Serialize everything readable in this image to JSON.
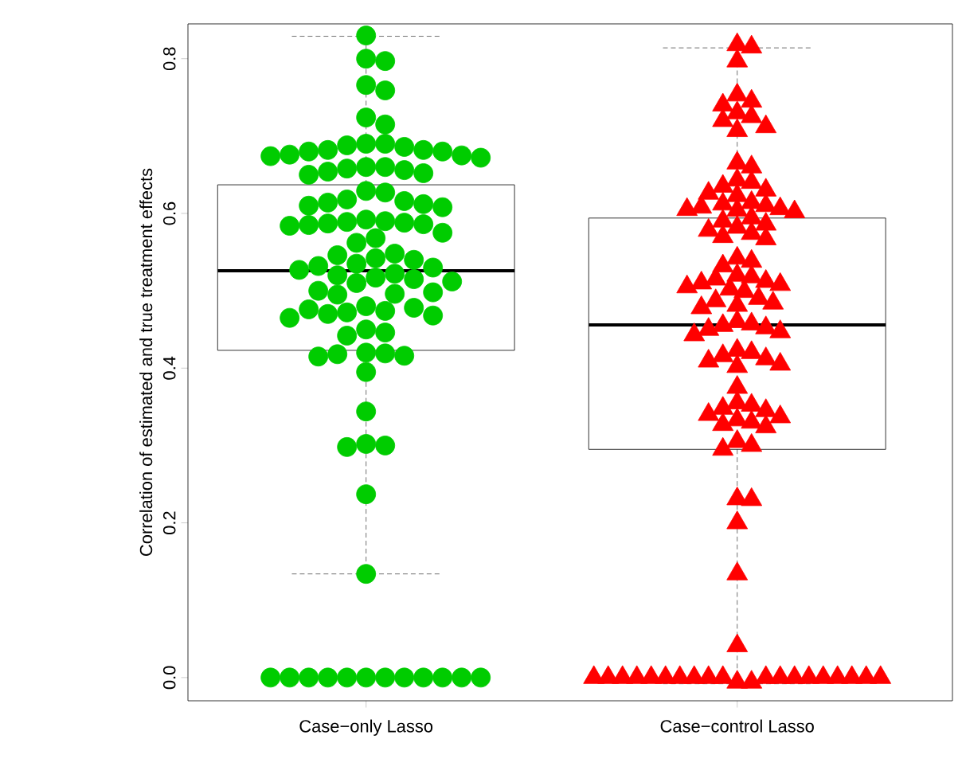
{
  "chart_data": {
    "type": "box",
    "ylabel": "Correlation of estimated and true treatment effects",
    "categories": [
      "Case−only Lasso",
      "Case−control Lasso"
    ],
    "boxes": [
      {
        "low": 0.134,
        "q1": 0.423,
        "median": 0.526,
        "q3": 0.637,
        "high": 0.829
      },
      {
        "low": -0.008,
        "q1": 0.295,
        "median": 0.456,
        "q3": 0.594,
        "high": 0.814
      }
    ],
    "ylim": [
      -0.03,
      0.845
    ],
    "yticks": [
      {
        "value": 0,
        "label": "0.0"
      },
      {
        "value": 0.2,
        "label": "0.2"
      },
      {
        "value": 0.4,
        "label": "0.4"
      },
      {
        "value": 0.6,
        "label": "0.6"
      },
      {
        "value": 0.8,
        "label": "0.8"
      }
    ],
    "series": [
      {
        "type": "scatter",
        "color": "#00cc00",
        "marker": "circle",
        "x": [
          "Case−only Lasso",
          "Case−only Lasso",
          "Case−only Lasso",
          "Case−only Lasso",
          "Case−only Lasso",
          "Case−only Lasso",
          "Case−only Lasso",
          "Case−only Lasso",
          "Case−only Lasso",
          "Case−only Lasso",
          "Case−only Lasso",
          "Case−only Lasso",
          "Case−only Lasso",
          "Case−only Lasso",
          "Case−only Lasso",
          "Case−only Lasso",
          "Case−only Lasso",
          "Case−only Lasso",
          "Case−only Lasso",
          "Case−only Lasso",
          "Case−only Lasso",
          "Case−only Lasso",
          "Case−only Lasso",
          "Case−only Lasso",
          "Case−only Lasso",
          "Case−only Lasso",
          "Case−only Lasso",
          "Case−only Lasso",
          "Case−only Lasso",
          "Case−only Lasso",
          "Case−only Lasso",
          "Case−only Lasso",
          "Case−only Lasso",
          "Case−only Lasso",
          "Case−only Lasso",
          "Case−only Lasso",
          "Case−only Lasso",
          "Case−only Lasso",
          "Case−only Lasso",
          "Case−only Lasso",
          "Case−only Lasso",
          "Case−only Lasso",
          "Case−only Lasso",
          "Case−only Lasso",
          "Case−only Lasso",
          "Case−only Lasso",
          "Case−only Lasso",
          "Case−only Lasso",
          "Case−only Lasso",
          "Case−only Lasso",
          "Case−only Lasso",
          "Case−only Lasso",
          "Case−only Lasso",
          "Case−only Lasso",
          "Case−only Lasso",
          "Case−only Lasso",
          "Case−only Lasso",
          "Case−only Lasso",
          "Case−only Lasso",
          "Case−only Lasso",
          "Case−only Lasso",
          "Case−only Lasso",
          "Case−only Lasso",
          "Case−only Lasso",
          "Case−only Lasso",
          "Case−only Lasso",
          "Case−only Lasso",
          "Case−only Lasso",
          "Case−only Lasso",
          "Case−only Lasso",
          "Case−only Lasso",
          "Case−only Lasso",
          "Case−only Lasso",
          "Case−only Lasso",
          "Case−only Lasso",
          "Case−only Lasso",
          "Case−only Lasso",
          "Case−only Lasso",
          "Case−only Lasso",
          "Case−only Lasso",
          "Case−only Lasso",
          "Case−only Lasso",
          "Case−only Lasso",
          "Case−only Lasso",
          "Case−only Lasso",
          "Case−only Lasso",
          "Case−only Lasso",
          "Case−only Lasso",
          "Case−only Lasso",
          "Case−only Lasso",
          "Case−only Lasso",
          "Case−only Lasso",
          "Case−only Lasso",
          "Case−only Lasso",
          "Case−only Lasso",
          "Case−only Lasso",
          "Case−only Lasso",
          "Case−only Lasso"
        ],
        "values": [
          0.83,
          0.8,
          0.797,
          0.766,
          0.759,
          0.724,
          0.715,
          0.69,
          0.69,
          0.688,
          0.686,
          0.682,
          0.682,
          0.68,
          0.68,
          0.676,
          0.675,
          0.674,
          0.672,
          0.66,
          0.66,
          0.658,
          0.656,
          0.654,
          0.652,
          0.65,
          0.629,
          0.627,
          0.618,
          0.616,
          0.614,
          0.612,
          0.61,
          0.608,
          0.592,
          0.59,
          0.589,
          0.588,
          0.587,
          0.586,
          0.585,
          0.584,
          0.575,
          0.568,
          0.562,
          0.548,
          0.546,
          0.542,
          0.54,
          0.535,
          0.532,
          0.53,
          0.527,
          0.522,
          0.52,
          0.517,
          0.515,
          0.512,
          0.51,
          0.5,
          0.498,
          0.496,
          0.495,
          0.48,
          0.478,
          0.476,
          0.474,
          0.472,
          0.47,
          0.468,
          0.465,
          0.45,
          0.446,
          0.442,
          0.42,
          0.419,
          0.418,
          0.416,
          0.415,
          0.395,
          0.344,
          0.302,
          0.3,
          0.298,
          0.237,
          0.134,
          0,
          0,
          0,
          0,
          0,
          0,
          0,
          0,
          0,
          0,
          0,
          0
        ]
      },
      {
        "type": "scatter",
        "color": "#ff0000",
        "marker": "triangle",
        "x": [
          "Case−control Lasso",
          "Case−control Lasso",
          "Case−control Lasso",
          "Case−control Lasso",
          "Case−control Lasso",
          "Case−control Lasso",
          "Case−control Lasso",
          "Case−control Lasso",
          "Case−control Lasso",
          "Case−control Lasso",
          "Case−control Lasso",
          "Case−control Lasso",
          "Case−control Lasso",
          "Case−control Lasso",
          "Case−control Lasso",
          "Case−control Lasso",
          "Case−control Lasso",
          "Case−control Lasso",
          "Case−control Lasso",
          "Case−control Lasso",
          "Case−control Lasso",
          "Case−control Lasso",
          "Case−control Lasso",
          "Case−control Lasso",
          "Case−control Lasso",
          "Case−control Lasso",
          "Case−control Lasso",
          "Case−control Lasso",
          "Case−control Lasso",
          "Case−control Lasso",
          "Case−control Lasso",
          "Case−control Lasso",
          "Case−control Lasso",
          "Case−control Lasso",
          "Case−control Lasso",
          "Case−control Lasso",
          "Case−control Lasso",
          "Case−control Lasso",
          "Case−control Lasso",
          "Case−control Lasso",
          "Case−control Lasso",
          "Case−control Lasso",
          "Case−control Lasso",
          "Case−control Lasso",
          "Case−control Lasso",
          "Case−control Lasso",
          "Case−control Lasso",
          "Case−control Lasso",
          "Case−control Lasso",
          "Case−control Lasso",
          "Case−control Lasso",
          "Case−control Lasso",
          "Case−control Lasso",
          "Case−control Lasso",
          "Case−control Lasso",
          "Case−control Lasso",
          "Case−control Lasso",
          "Case−control Lasso",
          "Case−control Lasso",
          "Case−control Lasso",
          "Case−control Lasso",
          "Case−control Lasso",
          "Case−control Lasso",
          "Case−control Lasso",
          "Case−control Lasso",
          "Case−control Lasso",
          "Case−control Lasso",
          "Case−control Lasso",
          "Case−control Lasso",
          "Case−control Lasso",
          "Case−control Lasso",
          "Case−control Lasso",
          "Case−control Lasso",
          "Case−control Lasso",
          "Case−control Lasso",
          "Case−control Lasso",
          "Case−control Lasso",
          "Case−control Lasso",
          "Case−control Lasso",
          "Case−control Lasso",
          "Case−control Lasso",
          "Case−control Lasso",
          "Case−control Lasso",
          "Case−control Lasso",
          "Case−control Lasso",
          "Case−control Lasso",
          "Case−control Lasso",
          "Case−control Lasso",
          "Case−control Lasso",
          "Case−control Lasso",
          "Case−control Lasso",
          "Case−control Lasso",
          "Case−control Lasso",
          "Case−control Lasso",
          "Case−control Lasso",
          "Case−control Lasso",
          "Case−control Lasso",
          "Case−control Lasso",
          "Case−control Lasso",
          "Case−control Lasso",
          "Case−control Lasso",
          "Case−control Lasso",
          "Case−control Lasso",
          "Case−control Lasso",
          "Case−control Lasso",
          "Case−control Lasso"
        ],
        "values": [
          0.818,
          0.815,
          0.797,
          0.753,
          0.745,
          0.74,
          0.73,
          0.725,
          0.72,
          0.712,
          0.707,
          0.665,
          0.66,
          0.643,
          0.64,
          0.635,
          0.63,
          0.626,
          0.623,
          0.614,
          0.612,
          0.61,
          0.608,
          0.606,
          0.605,
          0.604,
          0.602,
          0.594,
          0.59,
          0.586,
          0.582,
          0.578,
          0.574,
          0.57,
          0.567,
          0.542,
          0.538,
          0.532,
          0.52,
          0.518,
          0.515,
          0.512,
          0.51,
          0.508,
          0.505,
          0.502,
          0.499,
          0.49,
          0.487,
          0.484,
          0.481,
          0.478,
          0.46,
          0.457,
          0.455,
          0.452,
          0.45,
          0.447,
          0.443,
          0.423,
          0.42,
          0.416,
          0.412,
          0.409,
          0.405,
          0.402,
          0.375,
          0.355,
          0.352,
          0.348,
          0.345,
          0.34,
          0.337,
          0.333,
          0.33,
          0.327,
          0.324,
          0.305,
          0.3,
          0.295,
          0.231,
          0.23,
          0.2,
          0.134,
          0.041,
          -0.006,
          -0.006,
          0,
          0,
          0,
          0,
          0,
          0,
          0,
          0,
          0,
          0,
          0,
          0,
          0,
          0,
          0,
          0,
          0,
          0,
          0
        ]
      }
    ]
  }
}
